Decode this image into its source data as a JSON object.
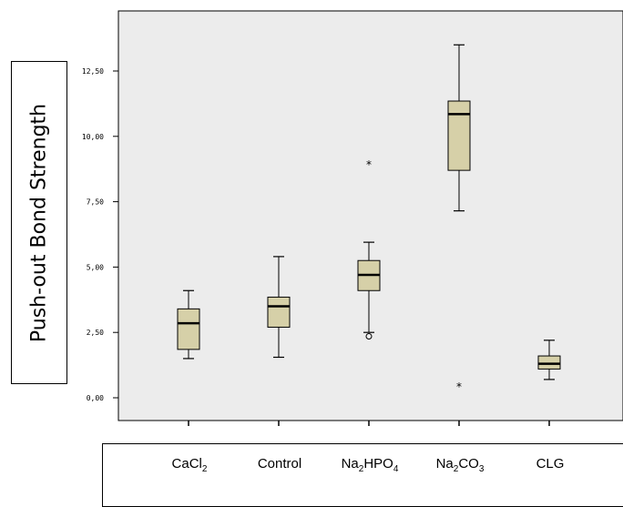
{
  "chart_data": {
    "type": "boxplot",
    "ylabel": "Push-out Bond Strength",
    "ylim": [
      -0.5,
      14.3
    ],
    "yticks": [
      "0,00",
      "2,50",
      "5,00",
      "7,50",
      "10,00",
      "12,50"
    ],
    "ytick_values": [
      0,
      2.5,
      5,
      7.5,
      10,
      12.5
    ],
    "grid": false,
    "box_color": "#d6d0a8",
    "plot_background": "#ececec",
    "categories": [
      {
        "name": "CaCl",
        "sub": "2",
        "tail": ""
      },
      {
        "name": "Control",
        "sub": "",
        "tail": ""
      },
      {
        "name": "Na",
        "sub": "2",
        "tail": "HPO",
        "sub2": "4"
      },
      {
        "name": "Na",
        "sub": "2",
        "tail": "CO",
        "sub2": "3"
      },
      {
        "name": "CLG",
        "sub": "",
        "tail": ""
      }
    ],
    "boxes": [
      {
        "min": 1.5,
        "q1": 1.85,
        "median": 2.85,
        "q3": 3.4,
        "max": 4.1,
        "outliers": [],
        "extremes": []
      },
      {
        "min": 1.55,
        "q1": 2.7,
        "median": 3.5,
        "q3": 3.85,
        "max": 5.4,
        "outliers": [],
        "extremes": []
      },
      {
        "min": 2.5,
        "q1": 4.1,
        "median": 4.7,
        "q3": 5.25,
        "max": 5.95,
        "outliers": [
          2.35
        ],
        "extremes": [
          8.95
        ]
      },
      {
        "min": 7.15,
        "q1": 8.7,
        "median": 10.85,
        "q3": 11.35,
        "max": 13.5,
        "outliers": [],
        "extremes": [
          0.45
        ]
      },
      {
        "min": 0.7,
        "q1": 1.1,
        "median": 1.3,
        "q3": 1.6,
        "max": 2.2,
        "outliers": [],
        "extremes": []
      }
    ],
    "outlier_marker": "o",
    "extreme_marker": "*"
  }
}
